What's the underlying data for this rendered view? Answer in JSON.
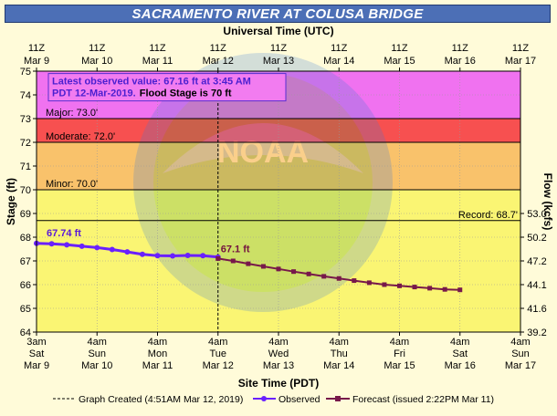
{
  "title": "SACRAMENTO RIVER AT COLUSA BRIDGE",
  "top_axis_label": "Universal Time (UTC)",
  "top_ticks": [
    {
      "a": "11Z",
      "b": "Mar 9"
    },
    {
      "a": "11Z",
      "b": "Mar 10"
    },
    {
      "a": "11Z",
      "b": "Mar 11"
    },
    {
      "a": "11Z",
      "b": "Mar 12"
    },
    {
      "a": "11Z",
      "b": "Mar 13"
    },
    {
      "a": "11Z",
      "b": "Mar 14"
    },
    {
      "a": "11Z",
      "b": "Mar 15"
    },
    {
      "a": "11Z",
      "b": "Mar 16"
    },
    {
      "a": "11Z",
      "b": "Mar 17"
    }
  ],
  "bottom_axis_label": "Site Time (PDT)",
  "bottom_ticks": [
    {
      "a": "3am",
      "b": "Sat",
      "c": "Mar 9"
    },
    {
      "a": "4am",
      "b": "Sun",
      "c": "Mar 10"
    },
    {
      "a": "4am",
      "b": "Mon",
      "c": "Mar 11"
    },
    {
      "a": "4am",
      "b": "Tue",
      "c": "Mar 12"
    },
    {
      "a": "4am",
      "b": "Wed",
      "c": "Mar 13"
    },
    {
      "a": "4am",
      "b": "Thu",
      "c": "Mar 14"
    },
    {
      "a": "4am",
      "b": "Fri",
      "c": "Mar 15"
    },
    {
      "a": "4am",
      "b": "Sat",
      "c": "Mar 16"
    },
    {
      "a": "4am",
      "b": "Sun",
      "c": "Mar 17"
    }
  ],
  "left_axis_label": "Stage (ft)",
  "right_axis_label": "Flow (kcfs)",
  "info_box": {
    "line1": "Latest observed value: 67.16 ft at 3:45 AM",
    "line2a": "PDT 12-Mar-2019.",
    "line2b": "Flood Stage is 70 ft"
  },
  "legend": {
    "created": "Graph Created (4:51AM Mar 12, 2019)",
    "observed": "Observed",
    "forecast": "Forecast (issued 2:22PM Mar 11)"
  },
  "colors": {
    "major": "#f072f0",
    "moderate": "#f75050",
    "flood": "#f9c26b",
    "action": "#faf573",
    "observed": "#6a20ff",
    "forecast": "#77184a",
    "title_bar": "#4c6fb6"
  },
  "chart_data": {
    "type": "line",
    "x_unit": "days since Mar 9 3am PDT",
    "y_label": "Stage (ft)",
    "ylim": [
      64,
      75
    ],
    "y_ticks": [
      64,
      65,
      66,
      67,
      68,
      69,
      70,
      71,
      72,
      73,
      74,
      75
    ],
    "xlim": [
      0,
      8
    ],
    "right_axis": {
      "label": "Flow (kcfs)",
      "ticks": [
        {
          "stage": 64.0,
          "label": "39.2"
        },
        {
          "stage": 65.0,
          "label": "41.6"
        },
        {
          "stage": 66.0,
          "label": "44.1"
        },
        {
          "stage": 67.0,
          "label": "47.2"
        },
        {
          "stage": 68.0,
          "label": "50.2"
        },
        {
          "stage": 69.0,
          "label": "53.0"
        }
      ]
    },
    "levels": [
      {
        "name": "Major",
        "label": "Major: 73.0'",
        "value": 73.0,
        "top": 75.0
      },
      {
        "name": "Moderate",
        "label": "Moderate: 72.0'",
        "value": 72.0,
        "top": 73.0
      },
      {
        "name": "Minor",
        "label": "Minor: 70.0'",
        "value": 70.0,
        "top": 72.0
      },
      {
        "name": "Action",
        "label": "",
        "value": 64.0,
        "top": 70.0
      }
    ],
    "record": {
      "label": "Record: 68.7'",
      "value": 68.7
    },
    "graph_created_x": 3.0,
    "series": [
      {
        "name": "Observed",
        "label": "67.74 ft",
        "values": [
          [
            0.0,
            67.74
          ],
          [
            0.25,
            67.72
          ],
          [
            0.5,
            67.68
          ],
          [
            0.75,
            67.62
          ],
          [
            1.0,
            67.56
          ],
          [
            1.25,
            67.48
          ],
          [
            1.5,
            67.38
          ],
          [
            1.75,
            67.28
          ],
          [
            2.0,
            67.22
          ],
          [
            2.25,
            67.21
          ],
          [
            2.5,
            67.23
          ],
          [
            2.75,
            67.22
          ],
          [
            3.0,
            67.16
          ]
        ]
      },
      {
        "name": "Forecast (issued 2:22PM Mar 11)",
        "label": "67.1 ft",
        "values": [
          [
            3.0,
            67.1
          ],
          [
            3.25,
            67.0
          ],
          [
            3.5,
            66.88
          ],
          [
            3.75,
            66.77
          ],
          [
            4.0,
            66.66
          ],
          [
            4.25,
            66.55
          ],
          [
            4.5,
            66.45
          ],
          [
            4.75,
            66.35
          ],
          [
            5.0,
            66.26
          ],
          [
            5.25,
            66.17
          ],
          [
            5.5,
            66.08
          ],
          [
            5.75,
            66.0
          ],
          [
            6.0,
            65.95
          ],
          [
            6.25,
            65.9
          ],
          [
            6.5,
            65.85
          ],
          [
            6.75,
            65.8
          ],
          [
            7.0,
            65.78
          ]
        ]
      }
    ]
  }
}
